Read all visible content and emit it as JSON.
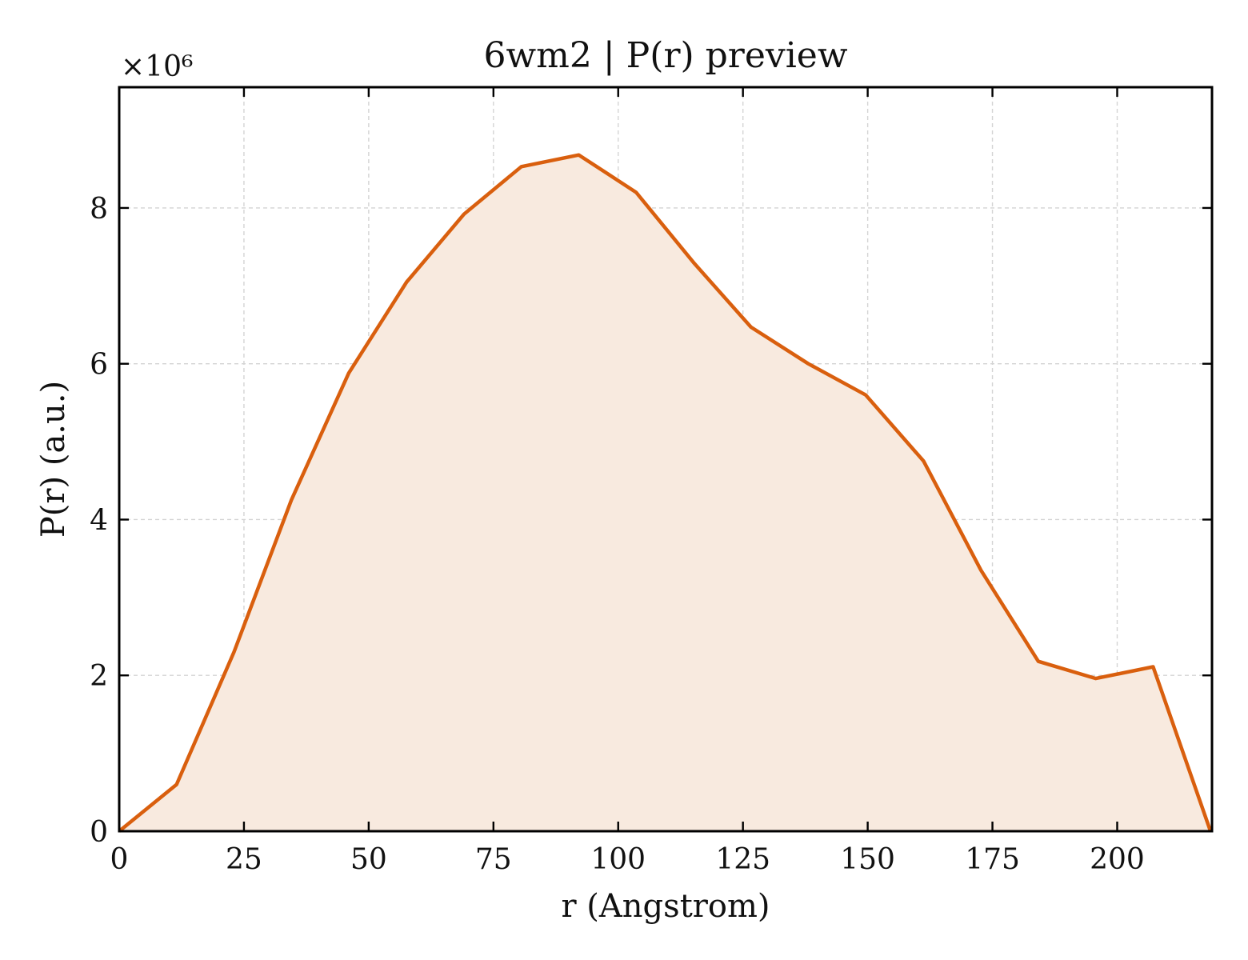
{
  "chart_data": {
    "type": "area",
    "title": "6wm2 | P(r) preview",
    "xlabel": "r (Angstrom)",
    "ylabel": "P(r) (a.u.)",
    "y_multiplier_label": "×10⁶",
    "xlim": [
      0,
      219
    ],
    "ylim": [
      0,
      9.55
    ],
    "x_ticks": [
      0,
      25,
      50,
      75,
      100,
      125,
      150,
      175,
      200
    ],
    "y_ticks": [
      0,
      2,
      4,
      6,
      8
    ],
    "grid": true,
    "legend": "none",
    "tick_direction": "in",
    "line_color": "#d95f0e",
    "fill_color": "#f8eadf",
    "series": [
      {
        "x": [
          0,
          11.5,
          23,
          34.5,
          46,
          57.6,
          69.1,
          80.6,
          92.1,
          103.6,
          115.1,
          126.6,
          138.1,
          149.6,
          161.2,
          172.7,
          184.2,
          195.7,
          207.2,
          218.7
        ],
        "y": [
          0,
          0.6,
          2.3,
          4.25,
          5.88,
          7.05,
          7.92,
          8.53,
          8.68,
          8.2,
          7.3,
          6.47,
          6.0,
          5.6,
          4.75,
          3.35,
          2.18,
          1.96,
          2.11,
          0.0
        ]
      }
    ]
  }
}
